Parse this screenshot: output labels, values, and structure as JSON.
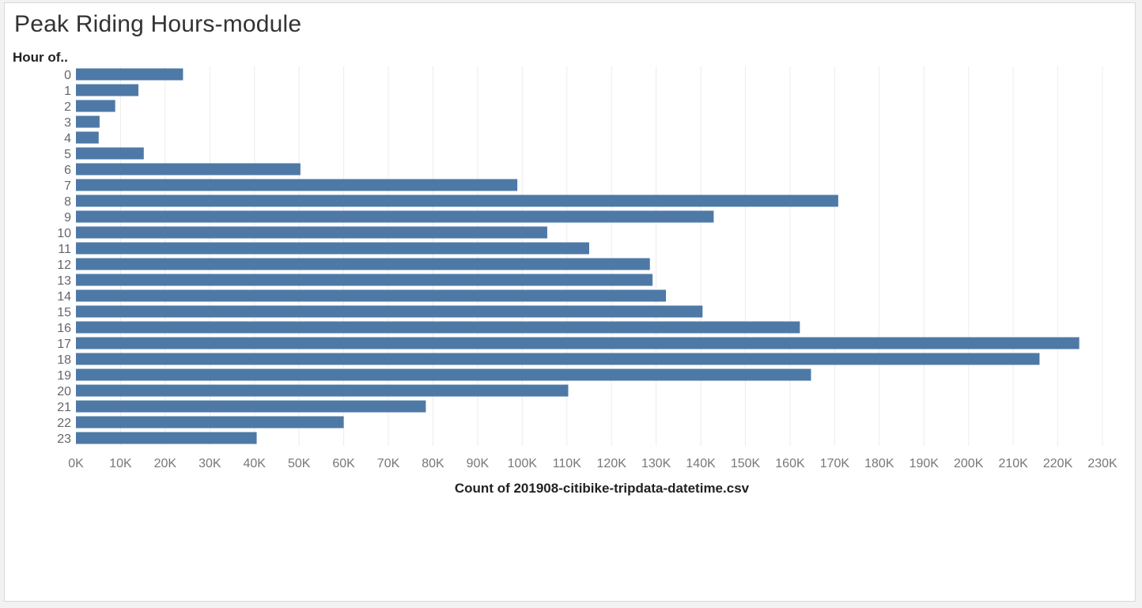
{
  "chart_data": {
    "type": "bar",
    "orientation": "horizontal",
    "title": "Peak Riding Hours-module",
    "ylabel": "Hour of..",
    "xlabel": "Count of 201908-citibike-tripdata-datetime.csv",
    "categories": [
      "0",
      "1",
      "2",
      "3",
      "4",
      "5",
      "6",
      "7",
      "8",
      "9",
      "10",
      "11",
      "12",
      "13",
      "14",
      "15",
      "16",
      "17",
      "18",
      "19",
      "20",
      "21",
      "22",
      "23"
    ],
    "values": [
      24000,
      14000,
      8800,
      5300,
      5100,
      15200,
      50300,
      98900,
      170800,
      142900,
      105600,
      115000,
      128600,
      129200,
      132200,
      140400,
      162200,
      224800,
      215900,
      164700,
      110300,
      78400,
      60000,
      40500
    ],
    "xlim": [
      0,
      230000
    ],
    "xticks": [
      0,
      10000,
      20000,
      30000,
      40000,
      50000,
      60000,
      70000,
      80000,
      90000,
      100000,
      110000,
      120000,
      130000,
      140000,
      150000,
      160000,
      170000,
      180000,
      190000,
      200000,
      210000,
      220000,
      230000
    ],
    "xtick_labels": [
      "0K",
      "10K",
      "20K",
      "30K",
      "40K",
      "50K",
      "60K",
      "70K",
      "80K",
      "90K",
      "100K",
      "110K",
      "120K",
      "130K",
      "140K",
      "150K",
      "160K",
      "170K",
      "180K",
      "190K",
      "200K",
      "210K",
      "220K",
      "230K"
    ],
    "grid": "vertical",
    "bar_color": "#4e79a7",
    "grid_color": "#ececec"
  }
}
